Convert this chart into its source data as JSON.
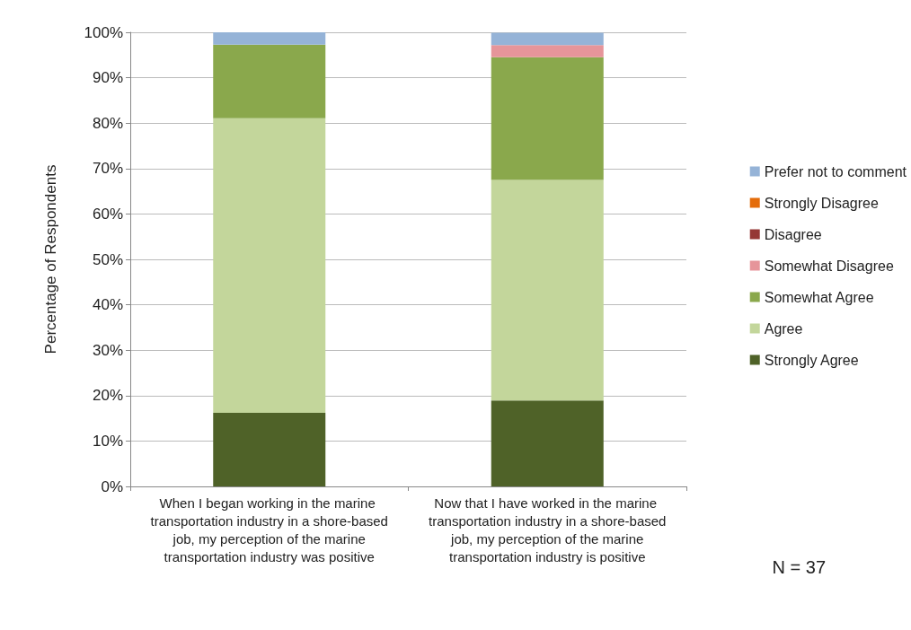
{
  "chart_data": {
    "type": "bar",
    "stacked": true,
    "ylabel": "Percentage of Respondents",
    "categories": [
      "When I began working in the marine transportation industry in a shore-based job, my perception of the marine transportation industry was positive",
      "Now that I have worked in the marine transportation industry in a shore-based job, my perception of the marine transportation industry is positive"
    ],
    "series": [
      {
        "name": "Strongly Agree",
        "color": "#4f6228",
        "values": [
          16.2,
          18.9
        ]
      },
      {
        "name": "Agree",
        "color": "#c3d69b",
        "values": [
          64.9,
          48.6
        ]
      },
      {
        "name": "Somewhat Agree",
        "color": "#8aa84c",
        "values": [
          16.2,
          27.0
        ]
      },
      {
        "name": "Somewhat Disagree",
        "color": "#e6959a",
        "values": [
          0,
          2.7
        ]
      },
      {
        "name": "Disagree",
        "color": "#953735",
        "values": [
          0,
          0
        ]
      },
      {
        "name": "Strongly Disagree",
        "color": "#e46c0a",
        "values": [
          0,
          0
        ]
      },
      {
        "name": "Prefer not to comment",
        "color": "#95b3d7",
        "values": [
          2.7,
          2.7
        ]
      }
    ],
    "ylim": [
      0,
      100
    ],
    "yticks": [
      {
        "value": 0,
        "label": "0%"
      },
      {
        "value": 10,
        "label": "10%"
      },
      {
        "value": 20,
        "label": "20%"
      },
      {
        "value": 30,
        "label": "30%"
      },
      {
        "value": 40,
        "label": "40%"
      },
      {
        "value": 50,
        "label": "50%"
      },
      {
        "value": 60,
        "label": "60%"
      },
      {
        "value": 70,
        "label": "70%"
      },
      {
        "value": 80,
        "label": "80%"
      },
      {
        "value": 90,
        "label": "90%"
      },
      {
        "value": 100,
        "label": "100%"
      }
    ],
    "grid": "y",
    "legend": "right",
    "annotations": [
      "N = 37"
    ]
  }
}
